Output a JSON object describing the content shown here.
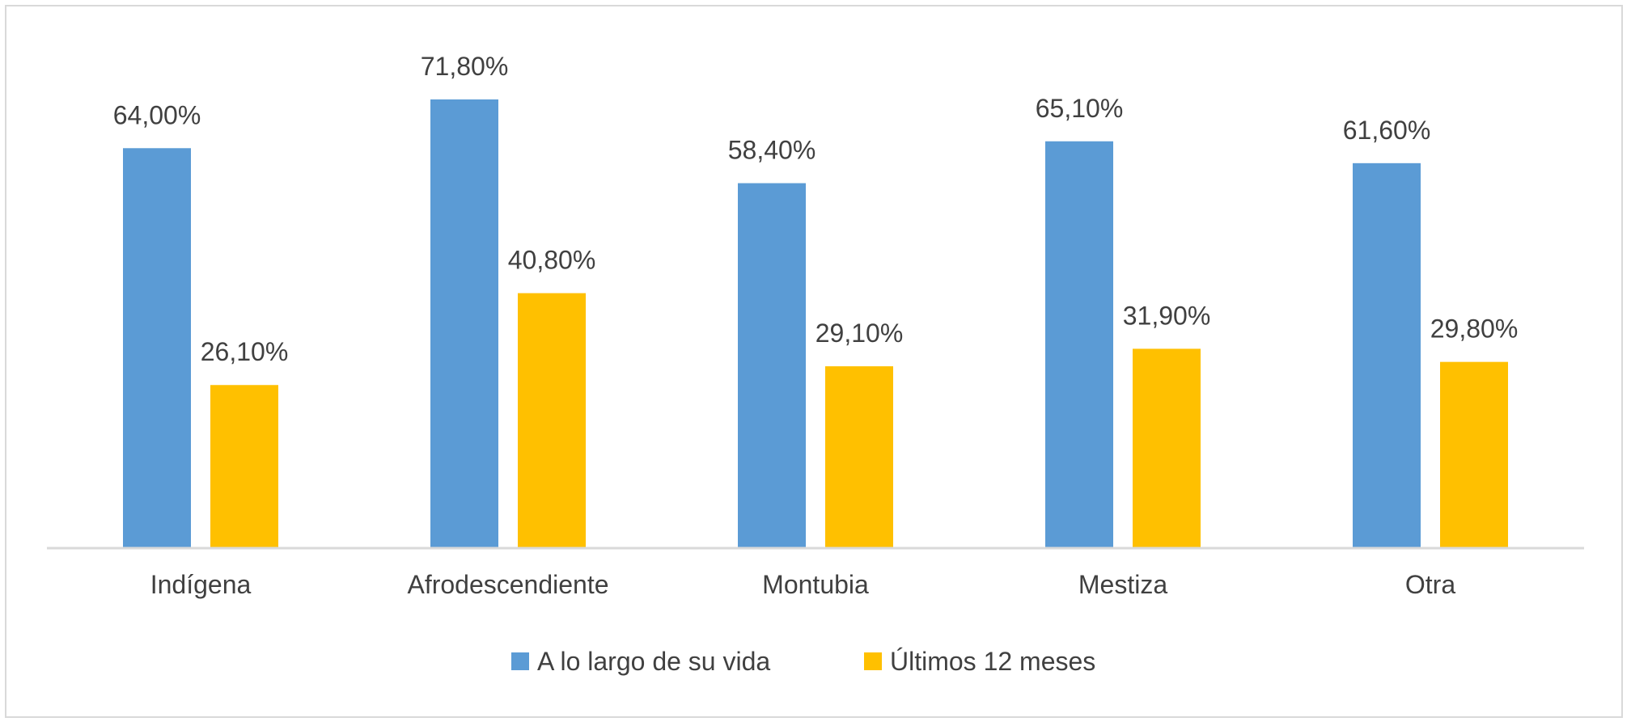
{
  "chart_data": {
    "type": "bar",
    "title": "",
    "xlabel": "",
    "ylabel": "",
    "ylim": [
      0,
      100
    ],
    "grid": false,
    "legend_position": "bottom",
    "categories": [
      "Indígena",
      "Afrodescendiente",
      "Montubia",
      "Mestiza",
      "Otra"
    ],
    "series": [
      {
        "name": "A lo largo de su vida",
        "color": "#5b9bd5",
        "values": [
          64.0,
          71.8,
          58.4,
          65.1,
          61.6
        ],
        "labels": [
          "64,00%",
          "71,80%",
          "58,40%",
          "65,10%",
          "61,60%"
        ]
      },
      {
        "name": "Últimos 12 meses",
        "color": "#ffc000",
        "values": [
          26.1,
          40.8,
          29.1,
          31.9,
          29.8
        ],
        "labels": [
          "26,10%",
          "40,80%",
          "29,10%",
          "31,90%",
          "29,80%"
        ]
      }
    ]
  }
}
